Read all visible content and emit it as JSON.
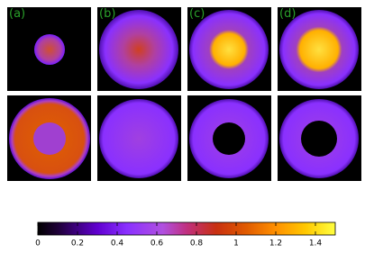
{
  "panels": {
    "labels": [
      "(a)",
      "(b)",
      "(c)",
      "(d)"
    ]
  },
  "colorbar": {
    "lim": [
      0,
      1.5
    ],
    "ticks": [
      0,
      0.2,
      0.4,
      0.6,
      0.8,
      1,
      1.2,
      1.4
    ]
  }
}
